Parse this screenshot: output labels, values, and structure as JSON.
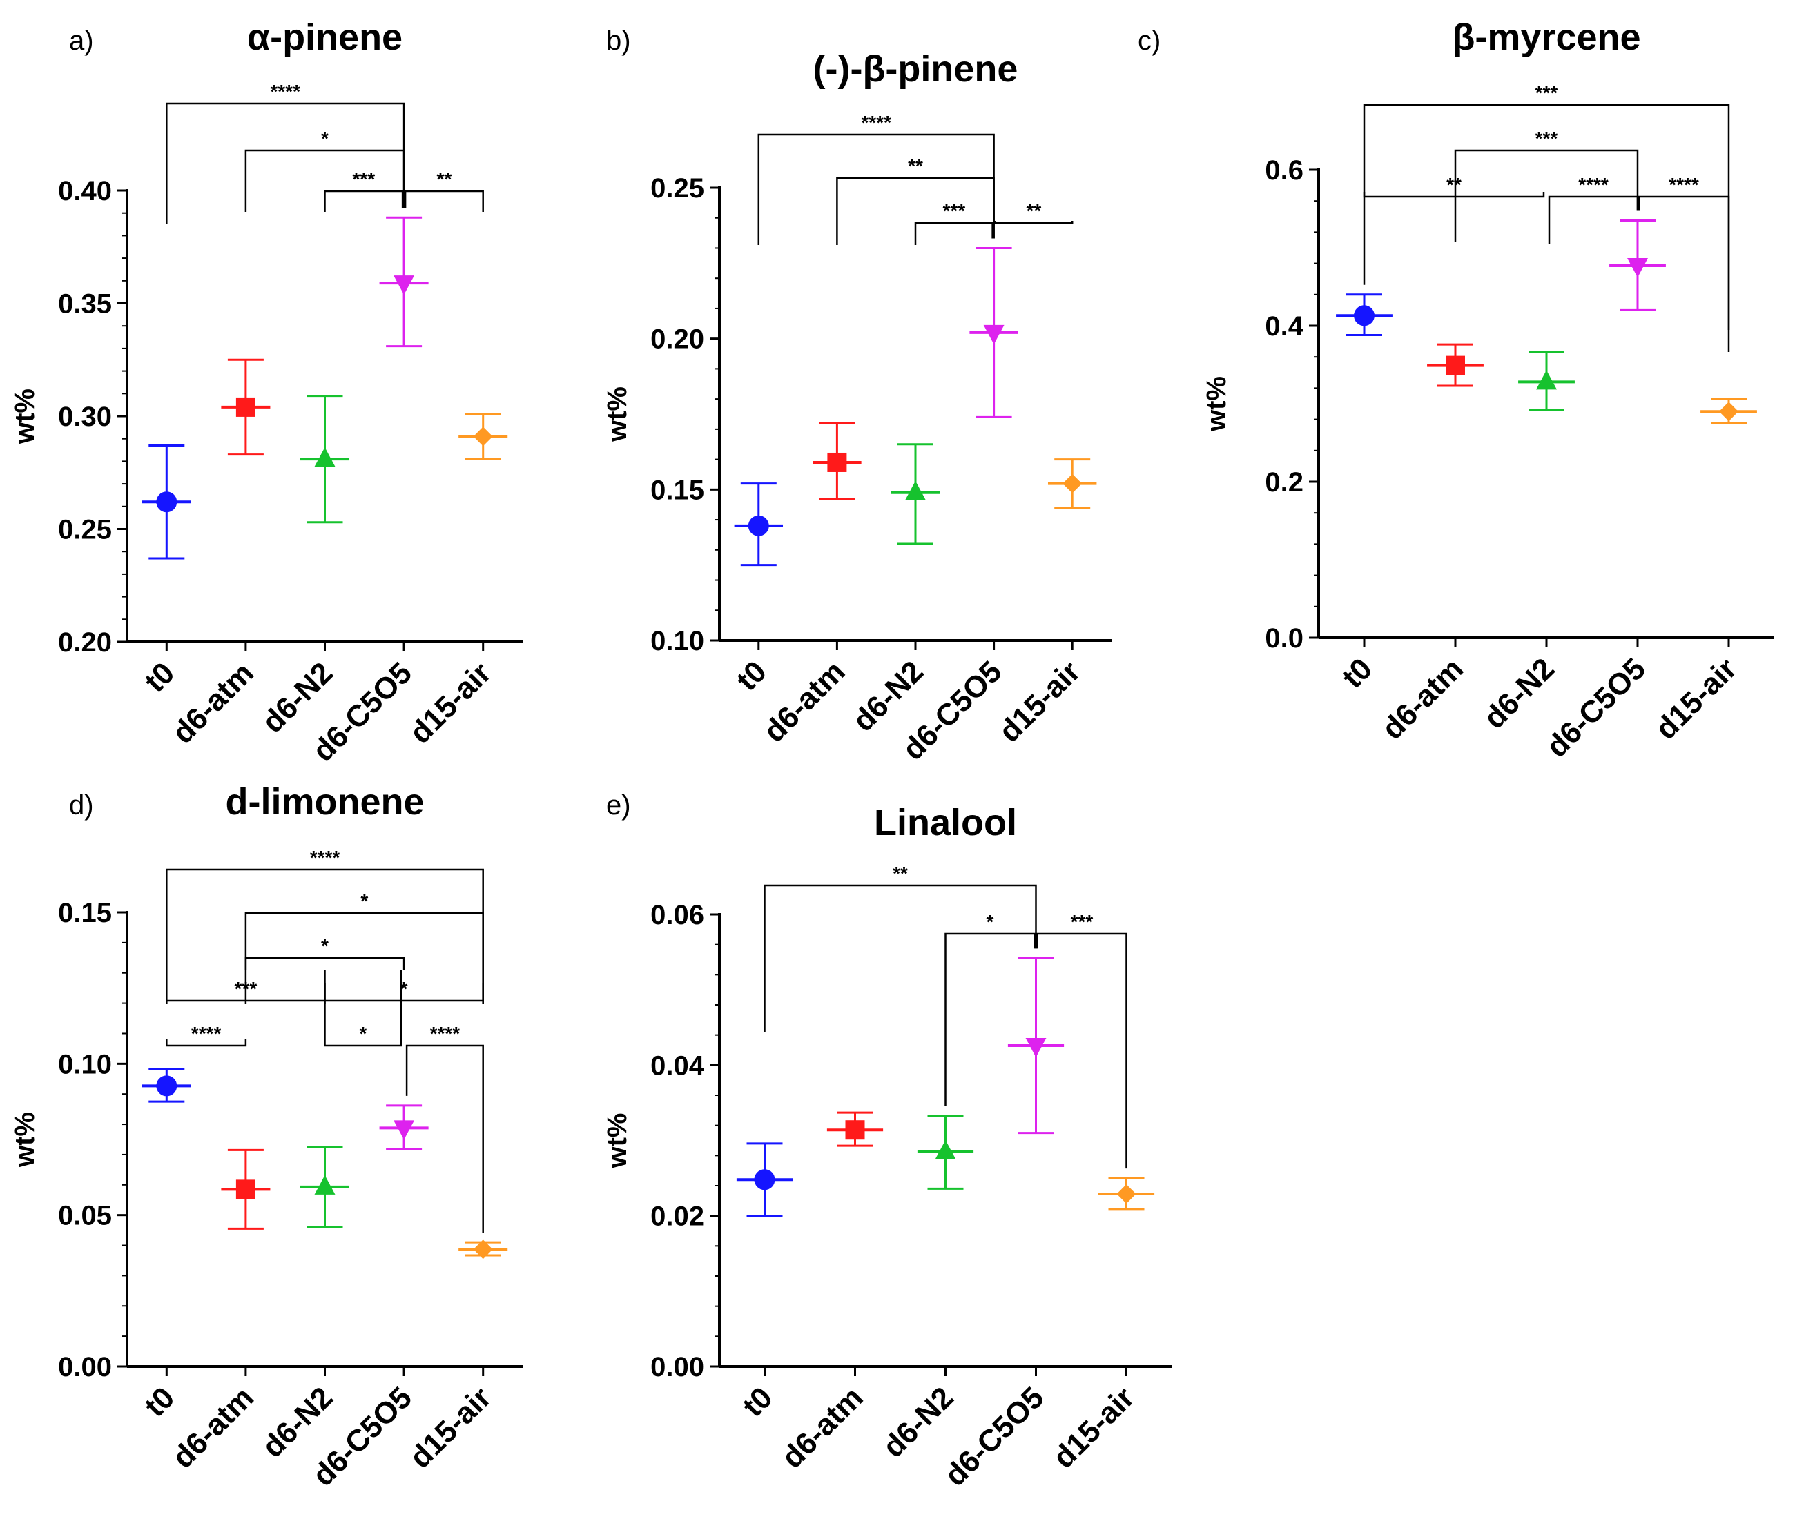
{
  "chart_data": [
    {
      "panel": "a)",
      "type": "scatter",
      "title": "α-pinene",
      "ylabel": "wt%",
      "categories": [
        "t0",
        "d6-atm",
        "d6-N2",
        "d6-C5O5",
        "d15-air"
      ],
      "ylim": [
        0.2,
        0.4
      ],
      "yticks": [
        "0.20",
        "0.25",
        "0.30",
        "0.35",
        "0.40"
      ],
      "series": [
        {
          "name": "t0",
          "color": "#1515ff",
          "marker": "circle",
          "mean": 0.262,
          "low": 0.237,
          "high": 0.287
        },
        {
          "name": "d6-atm",
          "color": "#ff1a1a",
          "marker": "square",
          "mean": 0.304,
          "low": 0.283,
          "high": 0.325
        },
        {
          "name": "d6-N2",
          "color": "#16c22e",
          "marker": "triangle-up",
          "mean": 0.281,
          "low": 0.253,
          "high": 0.309
        },
        {
          "name": "d6-C5O5",
          "color": "#dd22ee",
          "marker": "triangle-down",
          "mean": 0.359,
          "low": 0.331,
          "high": 0.388
        },
        {
          "name": "d15-air",
          "color": "#ff9922",
          "marker": "diamond",
          "mean": 0.291,
          "low": 0.281,
          "high": 0.301
        }
      ],
      "significance": [
        {
          "from": "t0",
          "to": "d6-C5O5",
          "label": "****"
        },
        {
          "from": "d6-atm",
          "to": "d6-C5O5",
          "label": "*"
        },
        {
          "from": "d6-N2",
          "to": "d6-C5O5",
          "label": "***"
        },
        {
          "from": "d6-C5O5",
          "to": "d15-air",
          "label": "**"
        }
      ]
    },
    {
      "panel": "b)",
      "type": "scatter",
      "title": "(-)-β-pinene",
      "ylabel": "wt%",
      "categories": [
        "t0",
        "d6-atm",
        "d6-N2",
        "d6-C5O5",
        "d15-air"
      ],
      "ylim": [
        0.1,
        0.25
      ],
      "yticks": [
        "0.10",
        "0.15",
        "0.20",
        "0.25"
      ],
      "series": [
        {
          "name": "t0",
          "color": "#1515ff",
          "marker": "circle",
          "mean": 0.138,
          "low": 0.125,
          "high": 0.152
        },
        {
          "name": "d6-atm",
          "color": "#ff1a1a",
          "marker": "square",
          "mean": 0.159,
          "low": 0.147,
          "high": 0.172
        },
        {
          "name": "d6-N2",
          "color": "#16c22e",
          "marker": "triangle-up",
          "mean": 0.149,
          "low": 0.132,
          "high": 0.165
        },
        {
          "name": "d6-C5O5",
          "color": "#dd22ee",
          "marker": "triangle-down",
          "mean": 0.202,
          "low": 0.174,
          "high": 0.23
        },
        {
          "name": "d15-air",
          "color": "#ff9922",
          "marker": "diamond",
          "mean": 0.152,
          "low": 0.144,
          "high": 0.16
        }
      ],
      "significance": [
        {
          "from": "t0",
          "to": "d6-C5O5",
          "label": "****"
        },
        {
          "from": "d6-atm",
          "to": "d6-C5O5",
          "label": "**"
        },
        {
          "from": "d6-N2",
          "to": "d6-C5O5",
          "label": "***"
        },
        {
          "from": "d6-C5O5",
          "to": "d15-air",
          "label": "**"
        }
      ]
    },
    {
      "panel": "c)",
      "type": "scatter",
      "title": "β-myrcene",
      "ylabel": "wt%",
      "categories": [
        "t0",
        "d6-atm",
        "d6-N2",
        "d6-C5O5",
        "d15-air"
      ],
      "ylim": [
        0,
        0.6
      ],
      "yticks": [
        "0.0",
        "0.2",
        "0.4",
        "0.6"
      ],
      "series": [
        {
          "name": "t0",
          "color": "#1515ff",
          "marker": "circle",
          "mean": 0.413,
          "low": 0.388,
          "high": 0.44
        },
        {
          "name": "d6-atm",
          "color": "#ff1a1a",
          "marker": "square",
          "mean": 0.349,
          "low": 0.323,
          "high": 0.376
        },
        {
          "name": "d6-N2",
          "color": "#16c22e",
          "marker": "triangle-up",
          "mean": 0.328,
          "low": 0.292,
          "high": 0.366
        },
        {
          "name": "d6-C5O5",
          "color": "#dd22ee",
          "marker": "triangle-down",
          "mean": 0.477,
          "low": 0.42,
          "high": 0.535
        },
        {
          "name": "d15-air",
          "color": "#ff9922",
          "marker": "diamond",
          "mean": 0.29,
          "low": 0.275,
          "high": 0.306
        }
      ],
      "significance": [
        {
          "from": "t0",
          "to": "d15-air",
          "label": "***"
        },
        {
          "from": "d6-atm",
          "to": "d6-C5O5",
          "label": "***"
        },
        {
          "from": "t0",
          "to": "d6-N2",
          "label": "**"
        },
        {
          "from": "d6-N2",
          "to": "d6-C5O5",
          "label": "****"
        },
        {
          "from": "d6-C5O5",
          "to": "d15-air",
          "label": "****"
        }
      ]
    },
    {
      "panel": "d)",
      "type": "scatter",
      "title": "d-limonene",
      "ylabel": "wt%",
      "categories": [
        "t0",
        "d6-atm",
        "d6-N2",
        "d6-C5O5",
        "d15-air"
      ],
      "ylim": [
        0,
        0.15
      ],
      "yticks": [
        "0.00",
        "0.05",
        "0.10",
        "0.15"
      ],
      "series": [
        {
          "name": "t0",
          "color": "#1515ff",
          "marker": "circle",
          "mean": 0.0927,
          "low": 0.0875,
          "high": 0.0983
        },
        {
          "name": "d6-atm",
          "color": "#ff1a1a",
          "marker": "square",
          "mean": 0.0585,
          "low": 0.0455,
          "high": 0.0715
        },
        {
          "name": "d6-N2",
          "color": "#16c22e",
          "marker": "triangle-up",
          "mean": 0.0593,
          "low": 0.046,
          "high": 0.0725
        },
        {
          "name": "d6-C5O5",
          "color": "#dd22ee",
          "marker": "triangle-down",
          "mean": 0.0788,
          "low": 0.0718,
          "high": 0.0862
        },
        {
          "name": "d15-air",
          "color": "#ff9922",
          "marker": "diamond",
          "mean": 0.0387,
          "low": 0.0367,
          "high": 0.041
        }
      ],
      "significance": [
        {
          "from": "t0",
          "to": "d15-air",
          "label": "****"
        },
        {
          "from": "d6-atm",
          "to": "d15-air",
          "label": "*"
        },
        {
          "from": "d6-atm",
          "to": "d6-C5O5",
          "label": "*"
        },
        {
          "from": "t0",
          "to": "d6-N2",
          "label": "***"
        },
        {
          "from": "d6-N2",
          "to": "d15-air",
          "label": "*"
        },
        {
          "from": "t0",
          "to": "d6-atm",
          "label": "****"
        },
        {
          "from": "d6-N2",
          "to": "d6-C5O5",
          "label": "*"
        },
        {
          "from": "d6-C5O5",
          "to": "d15-air",
          "label": "****"
        }
      ]
    },
    {
      "panel": "e)",
      "type": "scatter",
      "title": "Linalool",
      "ylabel": "wt%",
      "categories": [
        "t0",
        "d6-atm",
        "d6-N2",
        "d6-C5O5",
        "d15-air"
      ],
      "ylim": [
        0,
        0.06
      ],
      "yticks": [
        "0.00",
        "0.02",
        "0.04",
        "0.06"
      ],
      "series": [
        {
          "name": "t0",
          "color": "#1515ff",
          "marker": "circle",
          "mean": 0.0248,
          "low": 0.02,
          "high": 0.0296
        },
        {
          "name": "d6-atm",
          "color": "#ff1a1a",
          "marker": "square",
          "mean": 0.0314,
          "low": 0.0293,
          "high": 0.0337
        },
        {
          "name": "d6-N2",
          "color": "#16c22e",
          "marker": "triangle-up",
          "mean": 0.0285,
          "low": 0.0236,
          "high": 0.0333
        },
        {
          "name": "d6-C5O5",
          "color": "#dd22ee",
          "marker": "triangle-down",
          "mean": 0.0426,
          "low": 0.031,
          "high": 0.0542
        },
        {
          "name": "d15-air",
          "color": "#ff9922",
          "marker": "diamond",
          "mean": 0.0229,
          "low": 0.0209,
          "high": 0.025
        }
      ],
      "significance": [
        {
          "from": "t0",
          "to": "d6-C5O5",
          "label": "**"
        },
        {
          "from": "d6-N2",
          "to": "d6-C5O5",
          "label": "*"
        },
        {
          "from": "d6-C5O5",
          "to": "d15-air",
          "label": "***"
        }
      ]
    }
  ]
}
